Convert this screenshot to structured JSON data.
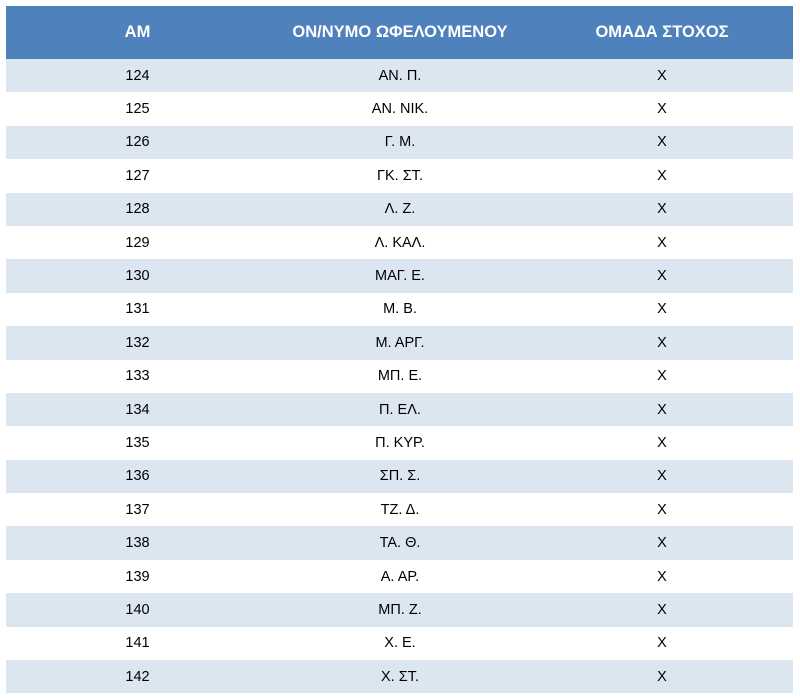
{
  "headers": {
    "am": "ΑΜ",
    "name": "ΟΝ/ΝΥΜΟ ΩΦΕΛΟΥΜΕΝΟΥ",
    "group": "ΟΜΑΔΑ ΣΤΟΧΟΣ"
  },
  "rows": [
    {
      "am": "124",
      "name": "ΑΝ. Π.",
      "group": "Χ"
    },
    {
      "am": "125",
      "name": "ΑΝ. ΝΙΚ.",
      "group": "Χ"
    },
    {
      "am": "126",
      "name": "Γ. Μ.",
      "group": "Χ"
    },
    {
      "am": "127",
      "name": "ΓΚ. ΣΤ.",
      "group": "Χ"
    },
    {
      "am": "128",
      "name": "Λ. Ζ.",
      "group": "Χ"
    },
    {
      "am": "129",
      "name": "Λ. ΚΑΛ.",
      "group": "Χ"
    },
    {
      "am": "130",
      "name": "ΜΑΓ. Ε.",
      "group": "Χ"
    },
    {
      "am": "131",
      "name": "Μ. Β.",
      "group": "Χ"
    },
    {
      "am": "132",
      "name": "Μ. ΑΡΓ.",
      "group": "Χ"
    },
    {
      "am": "133",
      "name": "ΜΠ. Ε.",
      "group": "Χ"
    },
    {
      "am": "134",
      "name": "Π. ΕΛ.",
      "group": "Χ"
    },
    {
      "am": "135",
      "name": "Π. ΚΥΡ.",
      "group": "Χ"
    },
    {
      "am": "136",
      "name": "ΣΠ. Σ.",
      "group": "Χ"
    },
    {
      "am": "137",
      "name": "ΤΖ. Δ.",
      "group": "Χ"
    },
    {
      "am": "138",
      "name": "ΤΑ. Θ.",
      "group": "Χ"
    },
    {
      "am": "139",
      "name": "Α. ΑΡ.",
      "group": "Χ"
    },
    {
      "am": "140",
      "name": "ΜΠ. Ζ.",
      "group": "Χ"
    },
    {
      "am": "141",
      "name": "Χ. Ε.",
      "group": "Χ"
    },
    {
      "am": "142",
      "name": "Χ. ΣΤ.",
      "group": "Χ"
    }
  ],
  "colors": {
    "header_bg": "#4f81bd",
    "header_text": "#ffffff",
    "band_row_bg": "#dce6f1",
    "plain_row_bg": "#ffffff"
  }
}
